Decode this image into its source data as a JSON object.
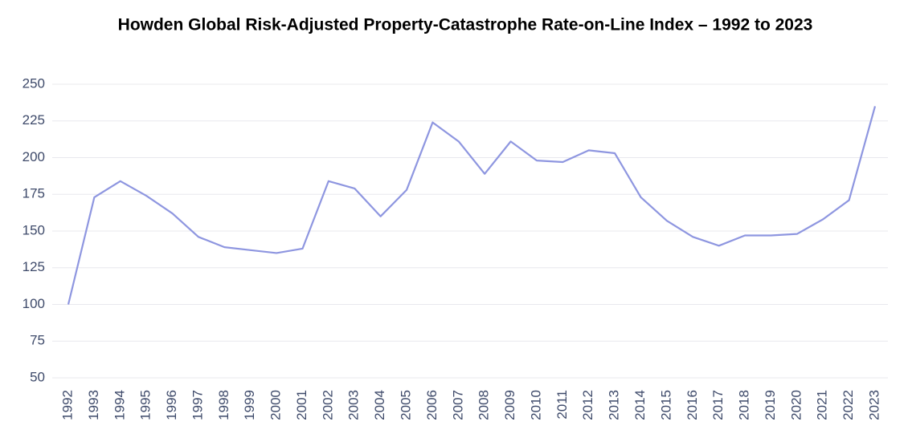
{
  "chart_data": {
    "type": "line",
    "title": "Howden Global Risk-Adjusted Property-Catastrophe Rate-on-Line Index – 1992 to 2023",
    "categories": [
      "1992",
      "1993",
      "1994",
      "1995",
      "1996",
      "1997",
      "1998",
      "1999",
      "2000",
      "2001",
      "2002",
      "2003",
      "2004",
      "2005",
      "2006",
      "2007",
      "2008",
      "2009",
      "2010",
      "2011",
      "2012",
      "2013",
      "2014",
      "2015",
      "2016",
      "2017",
      "2018",
      "2019",
      "2020",
      "2021",
      "2022",
      "2023"
    ],
    "series": [
      {
        "color": "#8e96e0",
        "values": [
          100,
          173,
          184,
          174,
          162,
          146,
          139,
          137,
          135,
          138,
          184,
          179,
          160,
          178,
          224,
          211,
          189,
          211,
          198,
          197,
          205,
          203,
          173,
          157,
          146,
          140,
          147,
          147,
          148,
          158,
          171,
          235
        ]
      }
    ],
    "ylim": [
      50,
      250
    ],
    "yticks": [
      50,
      75,
      100,
      125,
      150,
      175,
      200,
      225,
      250
    ],
    "grid": true
  }
}
